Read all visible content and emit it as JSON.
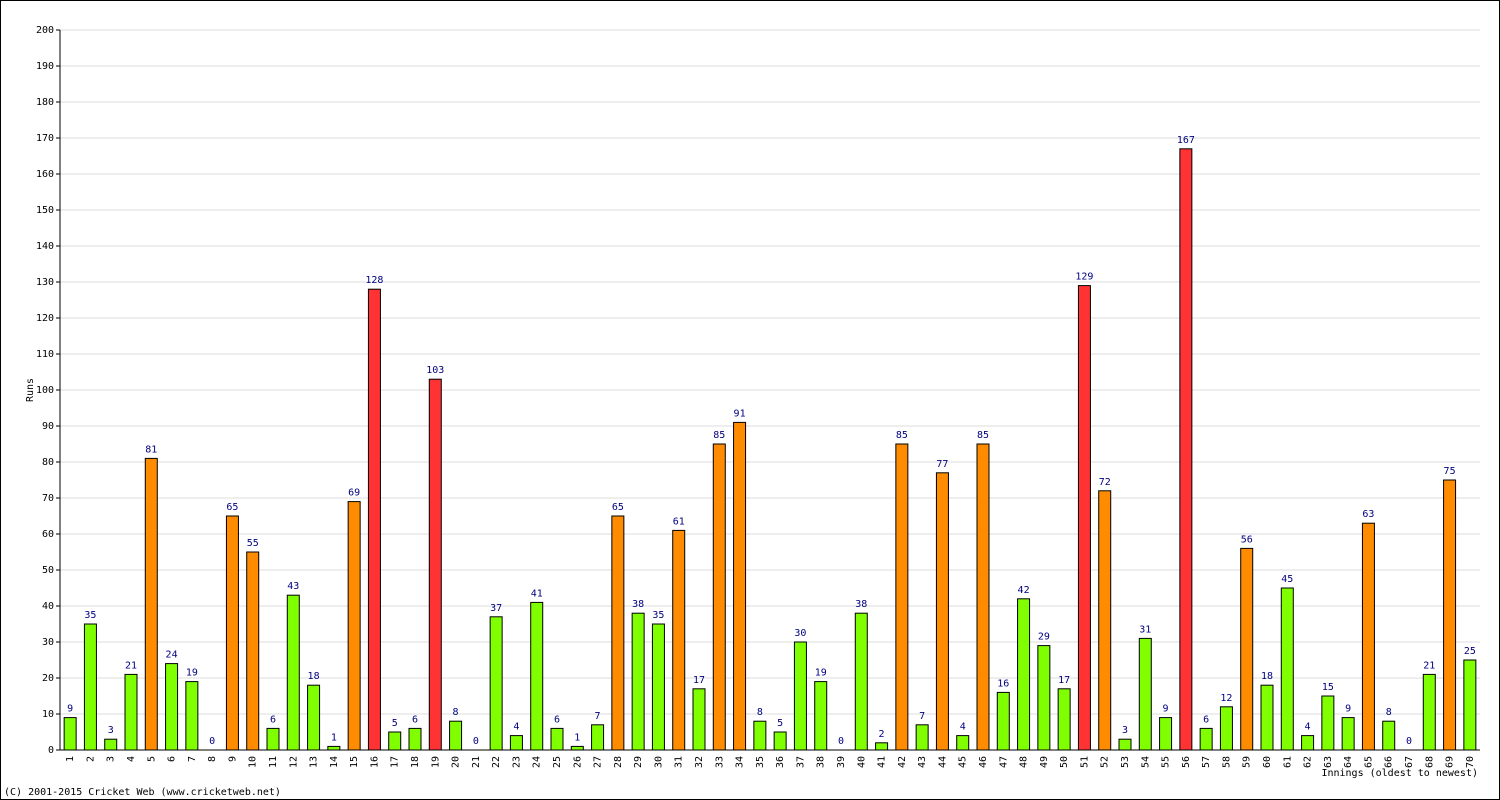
{
  "chart_data": {
    "type": "bar",
    "y_label": "Runs",
    "x_label": "Innings (oldest to newest)",
    "footer": "(C) 2001-2015 Cricket Web (www.cricketweb.net)",
    "categories": [
      "1",
      "2",
      "3",
      "4",
      "5",
      "6",
      "7",
      "8",
      "9",
      "10",
      "11",
      "12",
      "13",
      "14",
      "15",
      "16",
      "17",
      "18",
      "19",
      "20",
      "21",
      "22",
      "23",
      "24",
      "25",
      "26",
      "27",
      "28",
      "29",
      "30",
      "31",
      "32",
      "33",
      "34",
      "35",
      "36",
      "37",
      "38",
      "39",
      "40",
      "41",
      "42",
      "43",
      "44",
      "45",
      "46",
      "47",
      "48",
      "49",
      "50",
      "51",
      "52",
      "53",
      "54",
      "55",
      "56",
      "57",
      "58",
      "59",
      "60",
      "61",
      "62",
      "63",
      "64",
      "65",
      "66",
      "67",
      "68",
      "69",
      "70"
    ],
    "values": [
      9,
      35,
      3,
      21,
      81,
      24,
      19,
      0,
      65,
      55,
      6,
      43,
      18,
      1,
      69,
      128,
      5,
      6,
      103,
      8,
      0,
      37,
      4,
      41,
      6,
      1,
      7,
      65,
      38,
      35,
      61,
      17,
      85,
      91,
      8,
      5,
      30,
      19,
      0,
      38,
      2,
      85,
      7,
      77,
      4,
      85,
      16,
      42,
      29,
      17,
      129,
      72,
      3,
      31,
      9,
      167,
      6,
      12,
      56,
      18,
      45,
      4,
      15,
      9,
      63,
      8,
      0,
      21,
      75,
      25
    ],
    "colors": [
      "#80ff00",
      "#80ff00",
      "#80ff00",
      "#80ff00",
      "#ff8c00",
      "#80ff00",
      "#80ff00",
      "#80ff00",
      "#ff8c00",
      "#ff8c00",
      "#80ff00",
      "#80ff00",
      "#80ff00",
      "#80ff00",
      "#ff8c00",
      "#ff3333",
      "#80ff00",
      "#80ff00",
      "#ff3333",
      "#80ff00",
      "#80ff00",
      "#80ff00",
      "#80ff00",
      "#80ff00",
      "#80ff00",
      "#80ff00",
      "#80ff00",
      "#ff8c00",
      "#80ff00",
      "#80ff00",
      "#ff8c00",
      "#80ff00",
      "#ff8c00",
      "#ff8c00",
      "#80ff00",
      "#80ff00",
      "#80ff00",
      "#80ff00",
      "#80ff00",
      "#80ff00",
      "#80ff00",
      "#ff8c00",
      "#80ff00",
      "#ff8c00",
      "#80ff00",
      "#ff8c00",
      "#80ff00",
      "#80ff00",
      "#80ff00",
      "#80ff00",
      "#ff3333",
      "#ff8c00",
      "#80ff00",
      "#80ff00",
      "#80ff00",
      "#ff3333",
      "#80ff00",
      "#80ff00",
      "#ff8c00",
      "#80ff00",
      "#80ff00",
      "#80ff00",
      "#80ff00",
      "#80ff00",
      "#ff8c00",
      "#80ff00",
      "#80ff00",
      "#80ff00",
      "#ff8c00",
      "#80ff00"
    ],
    "ylim": [
      0,
      200
    ],
    "yticks": [
      0,
      10,
      20,
      30,
      40,
      50,
      60,
      70,
      80,
      90,
      100,
      110,
      120,
      130,
      140,
      150,
      160,
      170,
      180,
      190,
      200
    ],
    "grid": true
  }
}
